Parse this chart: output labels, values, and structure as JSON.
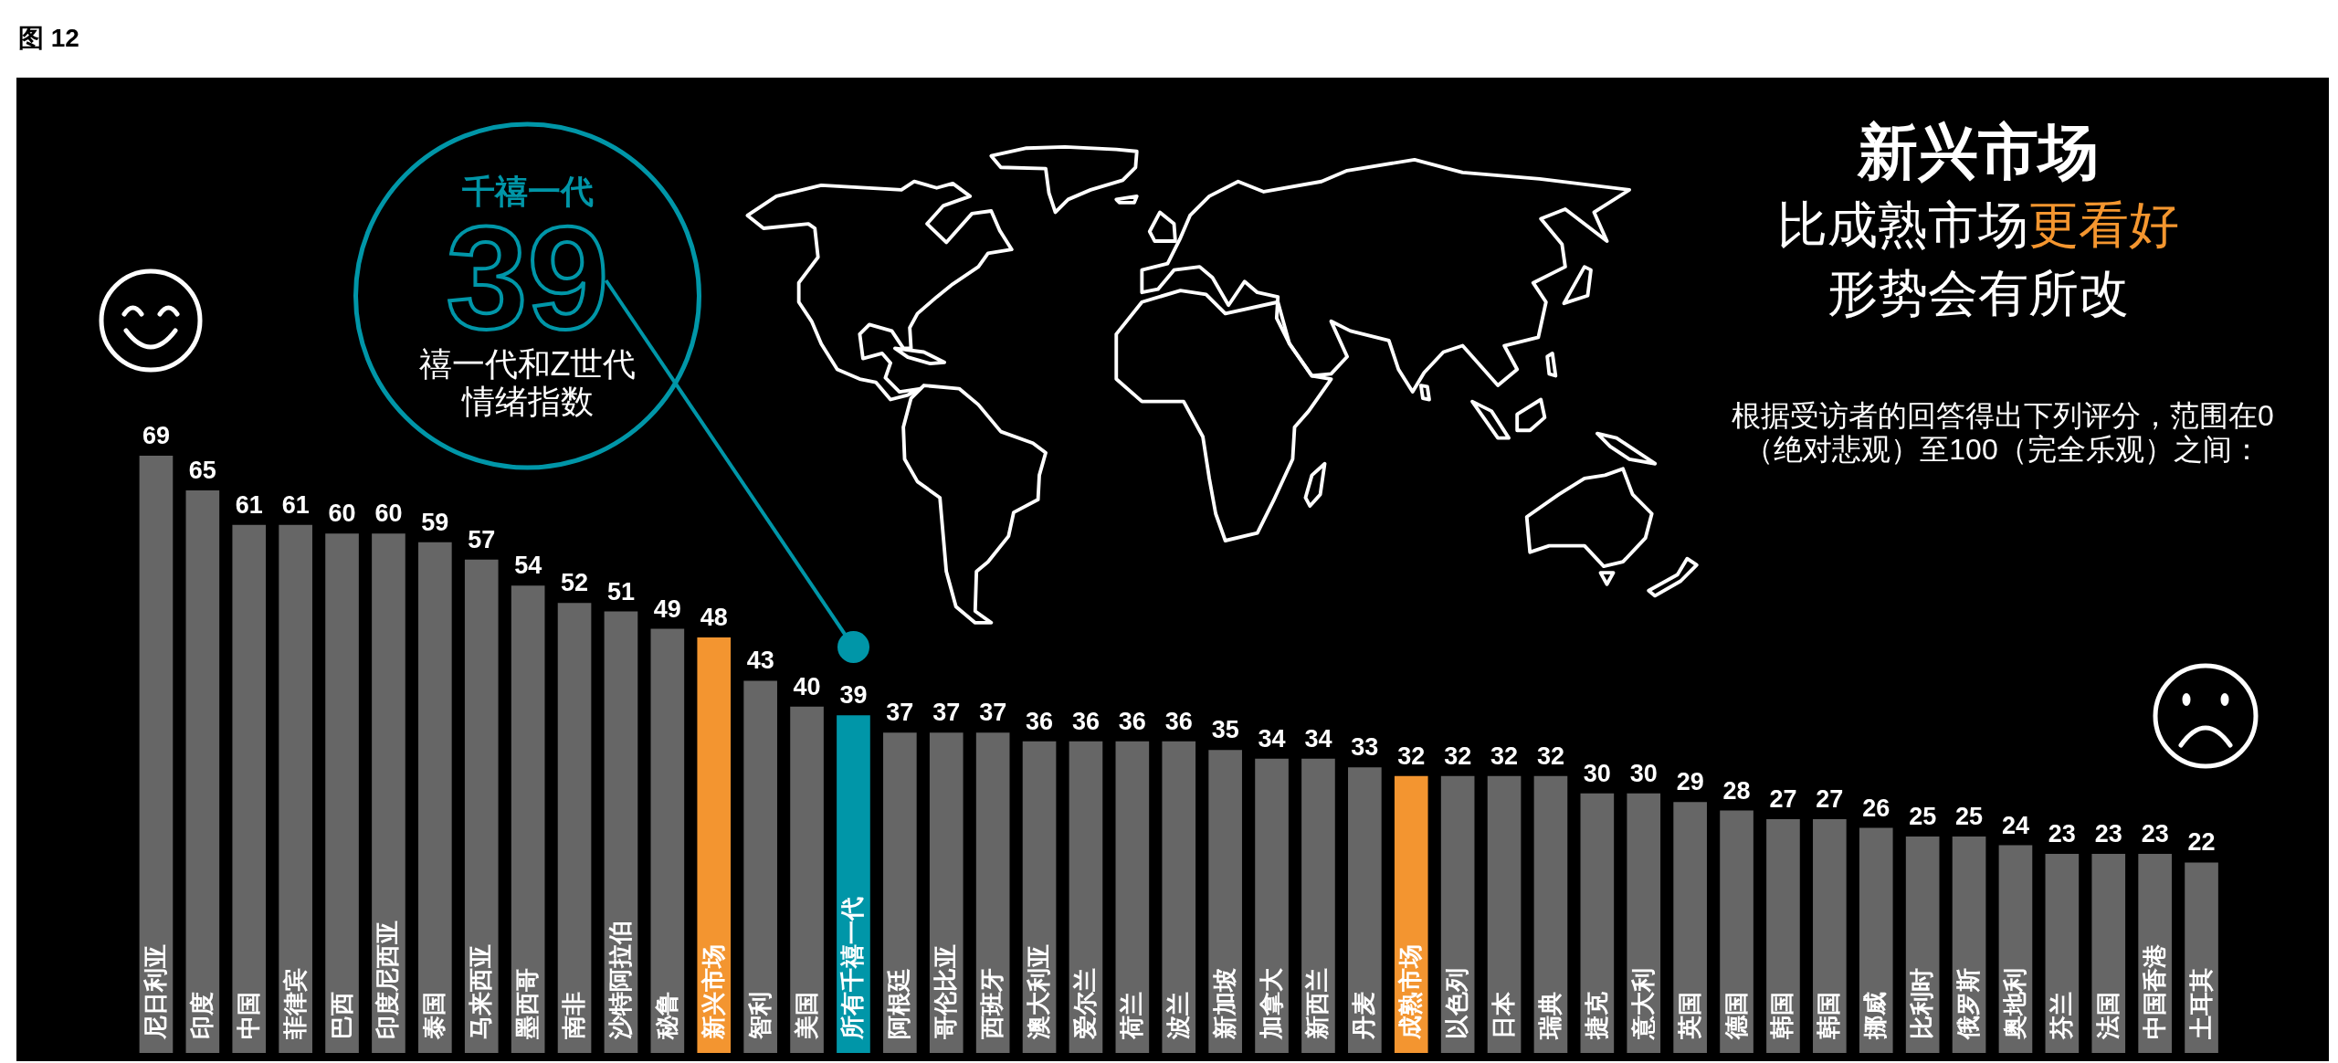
{
  "chart_data": {
    "type": "bar",
    "title": "图 12",
    "categories": [
      "尼日利亚",
      "印度",
      "中国",
      "菲律宾",
      "巴西",
      "印度尼西亚",
      "泰国",
      "马来西亚",
      "墨西哥",
      "南非",
      "沙特阿拉伯",
      "秘鲁",
      "新兴市场",
      "智利",
      "美国",
      "所有千禧一代",
      "阿根廷",
      "哥伦比亚",
      "西班牙",
      "澳大利亚",
      "爱尔兰",
      "荷兰",
      "波兰",
      "新加坡",
      "加拿大",
      "新西兰",
      "丹麦",
      "成熟市场",
      "以色列",
      "日本",
      "瑞典",
      "捷克",
      "意大利",
      "英国",
      "德国",
      "韩国",
      "韩国",
      "挪威",
      "比利时",
      "俄罗斯",
      "奥地利",
      "芬兰",
      "法国",
      "中国香港",
      "土耳其"
    ],
    "values": [
      69,
      65,
      61,
      61,
      60,
      60,
      59,
      57,
      54,
      52,
      51,
      49,
      48,
      43,
      40,
      39,
      37,
      37,
      37,
      36,
      36,
      36,
      36,
      35,
      34,
      34,
      33,
      32,
      32,
      32,
      32,
      30,
      30,
      29,
      28,
      27,
      27,
      26,
      25,
      25,
      24,
      23,
      23,
      23,
      22
    ],
    "colors": [
      "#666666",
      "#666666",
      "#666666",
      "#666666",
      "#666666",
      "#666666",
      "#666666",
      "#666666",
      "#666666",
      "#666666",
      "#666666",
      "#666666",
      "#f39530",
      "#666666",
      "#666666",
      "#0096a8",
      "#666666",
      "#666666",
      "#666666",
      "#666666",
      "#666666",
      "#666666",
      "#666666",
      "#666666",
      "#666666",
      "#666666",
      "#666666",
      "#f39530",
      "#666666",
      "#666666",
      "#666666",
      "#666666",
      "#666666",
      "#666666",
      "#666666",
      "#666666",
      "#666666",
      "#666666",
      "#666666",
      "#666666",
      "#666666",
      "#666666",
      "#666666",
      "#666666",
      "#666666"
    ],
    "data_labels": true,
    "tick_labels": "x",
    "annotations": [
      "新兴市场",
      "比成熟市场",
      "更看好",
      "形势会有所改",
      "根据受访者的回答得出下列评分，范围在0（绝对悲观）至100（完全乐观）之间：",
      {
        "text": "千禧一代\n39\n禧一代和Z世代情绪指数",
        "x": "所有千禧一代",
        "y": 39
      }
    ]
  }
}
